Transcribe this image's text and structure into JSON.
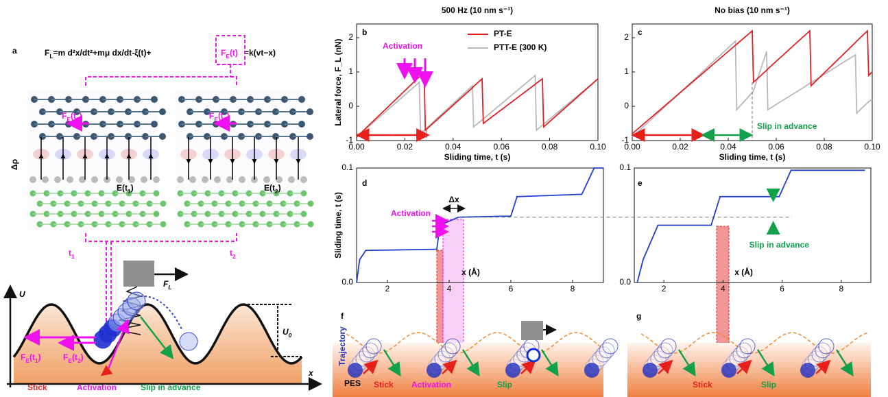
{
  "figure": {
    "panel_labels": [
      "a",
      "b",
      "c",
      "d",
      "e",
      "f",
      "g"
    ],
    "a": {
      "equation_lhs": [
        "F",
        "L",
        "=m d²x/dt²+mμ dx/dt-ξ(t)+"
      ],
      "equation_box": [
        "F",
        "E",
        "(t)"
      ],
      "equation_rhs": "=k(vt−x)",
      "fe_t1": [
        "F",
        "E",
        "(t",
        "1",
        ")"
      ],
      "fe_t2": [
        "F",
        "E",
        "(t",
        "2",
        ")"
      ],
      "delta_rho": "Δρ",
      "e_t1": [
        "E(t",
        "1",
        ")"
      ],
      "e_t2": [
        "E(t",
        "2",
        ")"
      ],
      "t1": [
        "t",
        "1"
      ],
      "t2": [
        "t",
        "2"
      ],
      "fl": [
        "F",
        "L"
      ],
      "u": "U",
      "u0": [
        "U",
        "0"
      ],
      "fe_bottom1": [
        "F",
        "E",
        "(t",
        "1",
        ")"
      ],
      "fe_bottom2": [
        "F",
        "E",
        "(t",
        "2",
        ")"
      ],
      "stick": "Stick",
      "activation": "Activation",
      "slip": "Slip in advance",
      "x_axis": "x"
    },
    "f": {
      "trajectory": "Trajectory",
      "pes": "PES",
      "stick": "Stick",
      "activation": "Activation",
      "slip": "Slip"
    },
    "g": {
      "stick": "Stick",
      "slip": "Slip"
    }
  },
  "chart_data": [
    {
      "type": "line",
      "title": "500 Hz (10 nm s⁻¹)",
      "x_label": "Sliding time, t (s)",
      "y_label": "Lateral force, F_L (nN)",
      "x": [
        0,
        0.026,
        0.0265,
        0.028,
        0.0285,
        0.048,
        0.0485,
        0.052,
        0.0525,
        0.074,
        0.0745,
        0.077,
        0.0775,
        0.1
      ],
      "series": [
        {
          "name": "PTT-E (300 K)",
          "color": "#b8b8b8",
          "values": [
            -0.9,
            0.7,
            -0.8,
            -0.7,
            -0.67,
            0.6,
            -0.6,
            -0.4,
            -0.37,
            0.9,
            -0.7,
            -0.55,
            -0.52,
            0.8
          ]
        },
        {
          "name": "PT-E",
          "color": "#e02020",
          "values": [
            -0.9,
            0.86,
            0.9,
            1.0,
            -0.7,
            0.54,
            0.58,
            0.8,
            -0.5,
            0.64,
            0.67,
            0.8,
            -0.6,
            0.8
          ]
        }
      ],
      "xlim": [
        0,
        0.1
      ],
      "xticks": [
        {
          "value": 0,
          "label": "0.00"
        },
        0.02,
        0.04,
        0.06,
        0.08,
        {
          "value": 0.1,
          "label": "0.10"
        }
      ],
      "ylim": [
        -1,
        2.4
      ],
      "yticks": [
        -1,
        0,
        1,
        2
      ],
      "annotations": [
        "Activation"
      ],
      "legend": "top-right"
    },
    {
      "type": "line",
      "title": "No bias (10 nm s⁻¹)",
      "x_label": "Sliding time, t (s)",
      "x": [
        0,
        0.043,
        0.0435,
        0.05,
        0.0505,
        0.056,
        0.0565,
        0.07,
        0.0705,
        0.074,
        0.0745,
        0.093,
        0.0935,
        0.098,
        0.0985,
        0.1
      ],
      "series": [
        {
          "color": "#b8b8b8",
          "values": [
            -0.9,
            1.9,
            -0.1,
            0.4,
            0.45,
            1.6,
            -0.1,
            0.49,
            0.51,
            0.67,
            0.69,
            1.5,
            -0.2,
            0.1,
            0.13,
            0.2
          ]
        },
        {
          "color": "#e02020",
          "values": [
            -0.8,
            1.78,
            1.81,
            2.2,
            0.7,
            1.05,
            1.09,
            1.95,
            1.98,
            2.2,
            0.6,
            1.86,
            1.9,
            2.2,
            0.9,
            1.0
          ]
        }
      ],
      "xlim": [
        0,
        0.1
      ],
      "xticks": [
        {
          "value": 0,
          "label": "0.00"
        },
        0.02,
        0.04,
        0.06,
        0.08,
        {
          "value": 0.1,
          "label": "0.10"
        }
      ],
      "ylim": [
        -1,
        2.4
      ],
      "yticks": [
        -1,
        0,
        1,
        2
      ],
      "annotations": [
        "Slip in advance"
      ]
    },
    {
      "type": "line",
      "x_label": "x (Å)",
      "y_label": "Sliding time, t (s)",
      "x": [
        1,
        1.1,
        1.3,
        3.6,
        3.7,
        4.3,
        6.0,
        6.2,
        8.3,
        8.7,
        9
      ],
      "series": [
        {
          "color": "#1f3fd0",
          "values": [
            0,
            0.02,
            0.028,
            0.029,
            0.05,
            0.057,
            0.058,
            0.075,
            0.077,
            0.1,
            0.1
          ]
        }
      ],
      "xlim": [
        1,
        9
      ],
      "xticks": [
        2,
        4,
        6,
        8
      ],
      "ylim": [
        0,
        0.1
      ],
      "yticks": [
        {
          "value": 0,
          "label": "0.0"
        },
        0.1
      ],
      "annotations": [
        "Activation",
        "Δx"
      ]
    },
    {
      "type": "line",
      "x_label": "x (Å)",
      "x": [
        1.1,
        1.3,
        1.8,
        3.6,
        3.9,
        5.9,
        6.3,
        8.8
      ],
      "series": [
        {
          "color": "#1f3fd0",
          "values": [
            0,
            0.02,
            0.05,
            0.05,
            0.075,
            0.075,
            0.098,
            0.098
          ]
        }
      ],
      "xlim": [
        1,
        9
      ],
      "xticks": [
        2,
        4,
        6,
        8
      ],
      "ylim": [
        0,
        0.1
      ],
      "yticks": [
        {
          "value": 0,
          "label": "0.0"
        },
        0.1
      ],
      "annotations": [
        "Slip in advance"
      ]
    }
  ]
}
